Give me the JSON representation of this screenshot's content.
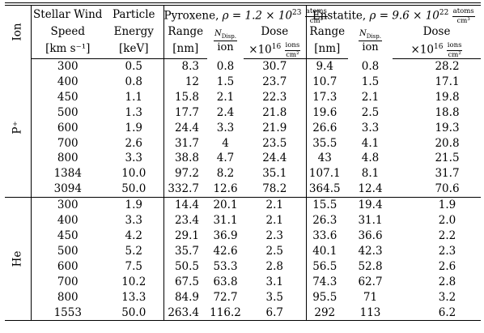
{
  "header": {
    "ion": "Ion",
    "swspeed": [
      "Stellar Wind",
      "Speed",
      "[km s⁻¹]"
    ],
    "penergy": [
      "Particle",
      "Energy",
      "[keV]"
    ],
    "pyroxene": {
      "name": "Pyroxene, ",
      "rho": "ρ = 1.2 × 10",
      "exp": "23",
      "unit_num": "atoms",
      "unit_den": "cm³"
    },
    "enstatite": {
      "name": "Enstatite, ",
      "rho": "ρ = 9.6 × 10",
      "exp": "22",
      "unit_num": "atoms",
      "unit_den": "cm³"
    },
    "range": [
      "Range",
      "[nm]"
    ],
    "ndisp_num": "N",
    "ndisp_sub": "Disp.",
    "ndisp_den": "ion",
    "dose": "Dose",
    "dose_unit": "×10",
    "dose_exp": "16",
    "dose_unit_num": "ions",
    "dose_unit_den": "cm²"
  },
  "sections": [
    {
      "ion": "P⁺",
      "rows": [
        [
          "300",
          "0.5",
          "8.3",
          "0.8",
          "30.7",
          "9.4",
          "0.8",
          "28.2"
        ],
        [
          "400",
          "0.8",
          "12",
          "1.5",
          "23.7",
          "10.7",
          "1.5",
          "17.1"
        ],
        [
          "450",
          "1.1",
          "15.8",
          "2.1",
          "22.3",
          "17.3",
          "2.1",
          "19.8"
        ],
        [
          "500",
          "1.3",
          "17.7",
          "2.4",
          "21.8",
          "19.6",
          "2.5",
          "18.8"
        ],
        [
          "600",
          "1.9",
          "24.4",
          "3.3",
          "21.9",
          "26.6",
          "3.3",
          "19.3"
        ],
        [
          "700",
          "2.6",
          "31.7",
          "4",
          "23.5",
          "35.5",
          "4.1",
          "20.8"
        ],
        [
          "800",
          "3.3",
          "38.8",
          "4.7",
          "24.4",
          "43",
          "4.8",
          "21.5"
        ],
        [
          "1384",
          "10.0",
          "97.2",
          "8.2",
          "35.1",
          "107.1",
          "8.1",
          "31.7"
        ],
        [
          "3094",
          "50.0",
          "332.7",
          "12.6",
          "78.2",
          "364.5",
          "12.4",
          "70.6"
        ]
      ]
    },
    {
      "ion": "He",
      "rows": [
        [
          "300",
          "1.9",
          "14.4",
          "20.1",
          "2.1",
          "15.5",
          "19.4",
          "1.9"
        ],
        [
          "400",
          "3.3",
          "23.4",
          "31.1",
          "2.1",
          "26.3",
          "31.1",
          "2.0"
        ],
        [
          "450",
          "4.2",
          "29.1",
          "36.9",
          "2.3",
          "33.6",
          "36.6",
          "2.2"
        ],
        [
          "500",
          "5.2",
          "35.7",
          "42.6",
          "2.5",
          "40.1",
          "42.3",
          "2.3"
        ],
        [
          "600",
          "7.5",
          "50.5",
          "53.3",
          "2.8",
          "56.5",
          "52.8",
          "2.6"
        ],
        [
          "700",
          "10.2",
          "67.5",
          "63.8",
          "3.1",
          "74.3",
          "62.7",
          "2.8"
        ],
        [
          "800",
          "13.3",
          "84.9",
          "72.7",
          "3.5",
          "95.5",
          "71",
          "3.2"
        ],
        [
          "1553",
          "50.0",
          "263.4",
          "116.2",
          "6.7",
          "292",
          "113",
          "6.2"
        ]
      ]
    }
  ]
}
